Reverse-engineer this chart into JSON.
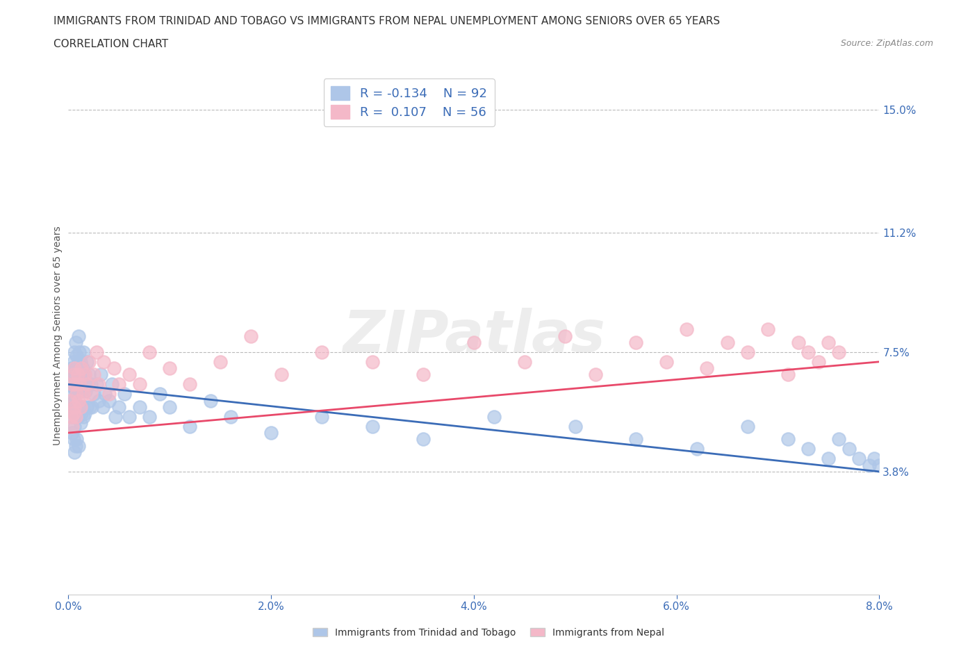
{
  "title_line1": "IMMIGRANTS FROM TRINIDAD AND TOBAGO VS IMMIGRANTS FROM NEPAL UNEMPLOYMENT AMONG SENIORS OVER 65 YEARS",
  "title_line2": "CORRELATION CHART",
  "source_text": "Source: ZipAtlas.com",
  "ylabel": "Unemployment Among Seniors over 65 years",
  "xlim": [
    0.0,
    0.08
  ],
  "ylim": [
    0.0,
    0.16
  ],
  "xtick_labels": [
    "0.0%",
    "2.0%",
    "4.0%",
    "6.0%",
    "8.0%"
  ],
  "xtick_values": [
    0.0,
    0.02,
    0.04,
    0.06,
    0.08
  ],
  "right_ytick_values": [
    0.038,
    0.075,
    0.112,
    0.15
  ],
  "right_ytick_labels": [
    "3.8%",
    "7.5%",
    "11.2%",
    "15.0%"
  ],
  "hline_values": [
    0.038,
    0.075,
    0.112,
    0.15
  ],
  "color_tt": "#aec6e8",
  "color_np": "#f4b8c8",
  "line_color_tt": "#3b6cb7",
  "line_color_np": "#e8496a",
  "legend_R_tt": "-0.134",
  "legend_N_tt": "92",
  "legend_R_np": "0.107",
  "legend_N_np": "56",
  "legend_label_tt": "Immigrants from Trinidad and Tobago",
  "legend_label_np": "Immigrants from Nepal",
  "watermark": "ZIPatlas",
  "tt_x": [
    0.0002,
    0.0003,
    0.0003,
    0.0004,
    0.0004,
    0.0004,
    0.0005,
    0.0005,
    0.0005,
    0.0005,
    0.0006,
    0.0006,
    0.0006,
    0.0006,
    0.0006,
    0.0007,
    0.0007,
    0.0007,
    0.0007,
    0.0007,
    0.0008,
    0.0008,
    0.0008,
    0.0008,
    0.0009,
    0.0009,
    0.0009,
    0.001,
    0.001,
    0.001,
    0.001,
    0.001,
    0.0011,
    0.0011,
    0.0011,
    0.0012,
    0.0012,
    0.0012,
    0.0013,
    0.0013,
    0.0014,
    0.0014,
    0.0015,
    0.0015,
    0.0015,
    0.0016,
    0.0016,
    0.0017,
    0.0018,
    0.0018,
    0.0019,
    0.002,
    0.0021,
    0.0022,
    0.0023,
    0.0025,
    0.0028,
    0.003,
    0.0032,
    0.0034,
    0.0036,
    0.004,
    0.0043,
    0.0046,
    0.005,
    0.0055,
    0.006,
    0.007,
    0.008,
    0.009,
    0.01,
    0.012,
    0.014,
    0.016,
    0.02,
    0.025,
    0.03,
    0.035,
    0.042,
    0.05,
    0.056,
    0.062,
    0.067,
    0.071,
    0.073,
    0.075,
    0.076,
    0.077,
    0.078,
    0.079,
    0.0795,
    0.08
  ],
  "tt_y": [
    0.065,
    0.07,
    0.055,
    0.068,
    0.062,
    0.05,
    0.072,
    0.064,
    0.058,
    0.048,
    0.075,
    0.068,
    0.06,
    0.052,
    0.044,
    0.078,
    0.07,
    0.063,
    0.056,
    0.046,
    0.074,
    0.066,
    0.058,
    0.048,
    0.07,
    0.063,
    0.055,
    0.08,
    0.072,
    0.064,
    0.056,
    0.046,
    0.075,
    0.067,
    0.058,
    0.072,
    0.063,
    0.053,
    0.068,
    0.056,
    0.07,
    0.058,
    0.075,
    0.065,
    0.055,
    0.068,
    0.056,
    0.063,
    0.072,
    0.058,
    0.065,
    0.068,
    0.058,
    0.065,
    0.058,
    0.062,
    0.065,
    0.06,
    0.068,
    0.058,
    0.062,
    0.06,
    0.065,
    0.055,
    0.058,
    0.062,
    0.055,
    0.058,
    0.055,
    0.062,
    0.058,
    0.052,
    0.06,
    0.055,
    0.05,
    0.055,
    0.052,
    0.048,
    0.055,
    0.052,
    0.048,
    0.045,
    0.052,
    0.048,
    0.045,
    0.042,
    0.048,
    0.045,
    0.042,
    0.04,
    0.042,
    0.04
  ],
  "np_x": [
    0.0002,
    0.0003,
    0.0004,
    0.0004,
    0.0005,
    0.0005,
    0.0006,
    0.0006,
    0.0007,
    0.0007,
    0.0008,
    0.0009,
    0.001,
    0.0011,
    0.0012,
    0.0013,
    0.0015,
    0.0016,
    0.0018,
    0.002,
    0.0022,
    0.0025,
    0.0028,
    0.003,
    0.0035,
    0.004,
    0.0045,
    0.005,
    0.006,
    0.007,
    0.008,
    0.01,
    0.012,
    0.015,
    0.018,
    0.021,
    0.025,
    0.03,
    0.035,
    0.04,
    0.045,
    0.049,
    0.052,
    0.056,
    0.059,
    0.061,
    0.063,
    0.065,
    0.067,
    0.069,
    0.071,
    0.072,
    0.073,
    0.074,
    0.075,
    0.076
  ],
  "np_y": [
    0.06,
    0.055,
    0.065,
    0.052,
    0.068,
    0.056,
    0.07,
    0.058,
    0.065,
    0.055,
    0.062,
    0.068,
    0.06,
    0.065,
    0.058,
    0.07,
    0.062,
    0.068,
    0.065,
    0.072,
    0.062,
    0.068,
    0.075,
    0.065,
    0.072,
    0.062,
    0.07,
    0.065,
    0.068,
    0.065,
    0.075,
    0.07,
    0.065,
    0.072,
    0.08,
    0.068,
    0.075,
    0.072,
    0.068,
    0.078,
    0.072,
    0.08,
    0.068,
    0.078,
    0.072,
    0.082,
    0.07,
    0.078,
    0.075,
    0.082,
    0.068,
    0.078,
    0.075,
    0.072,
    0.078,
    0.075
  ],
  "title_fontsize": 11,
  "axis_label_fontsize": 10,
  "tick_fontsize": 11,
  "label_color": "#3b6cb7",
  "ylabel_color": "#555555",
  "background_color": "#ffffff",
  "plot_bg_color": "#ffffff"
}
